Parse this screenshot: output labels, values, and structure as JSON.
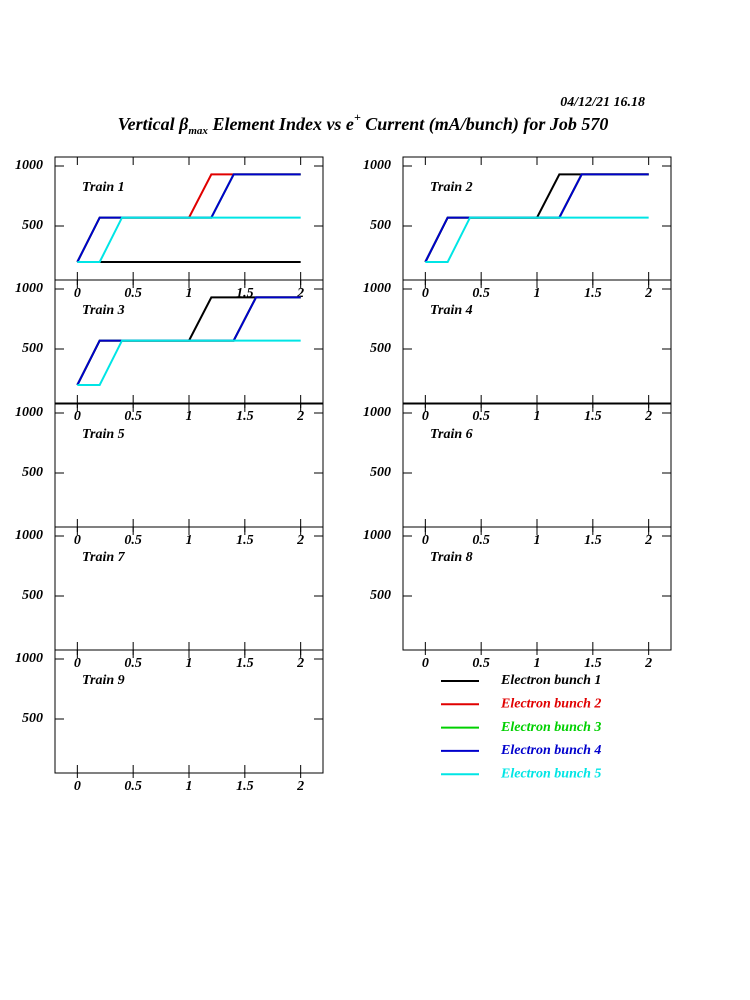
{
  "header": {
    "date": "04/12/21   16.18",
    "title_parts": [
      "Vertical β",
      "max",
      " Element Index vs e",
      "+",
      " Current (mA/bunch) for Job 570"
    ]
  },
  "chart_data": [
    {
      "type": "line",
      "title": "Train 1",
      "xlim": [
        -0.2,
        2.2
      ],
      "ylim": [
        50,
        1075
      ],
      "xticks": [
        0,
        0.5,
        1,
        1.5,
        2
      ],
      "yticks": [
        500,
        1000
      ],
      "x": [
        0,
        0.2,
        0.4,
        1,
        1.2,
        1.4,
        1.6,
        2
      ],
      "series": [
        {
          "name": "Electron bunch 1",
          "color": "#000000",
          "values": [
            200,
            200,
            200,
            200,
            200,
            200,
            200,
            200
          ]
        },
        {
          "name": "Electron bunch 2",
          "color": "#e00000",
          "values": [
            200,
            570,
            570,
            570,
            930,
            930,
            930,
            930
          ]
        },
        {
          "name": "Electron bunch 3",
          "color": "#00d000",
          "values": [
            200,
            570,
            570,
            570,
            570,
            930,
            930,
            930
          ]
        },
        {
          "name": "Electron bunch 4",
          "color": "#0000cc",
          "values": [
            200,
            570,
            570,
            570,
            570,
            930,
            930,
            930
          ]
        },
        {
          "name": "Electron bunch 5",
          "color": "#00e5e5",
          "values": [
            200,
            200,
            570,
            570,
            570,
            570,
            570,
            570
          ]
        }
      ]
    },
    {
      "type": "line",
      "title": "Train 2",
      "xlim": [
        -0.2,
        2.2
      ],
      "ylim": [
        50,
        1075
      ],
      "xticks": [
        0,
        0.5,
        1,
        1.5,
        2
      ],
      "yticks": [
        500,
        1000
      ],
      "x": [
        0,
        0.2,
        0.4,
        1,
        1.2,
        1.4,
        1.6,
        2
      ],
      "series": [
        {
          "name": "Electron bunch 1",
          "color": "#000000",
          "values": [
            200,
            570,
            570,
            570,
            930,
            930,
            930,
            930
          ]
        },
        {
          "name": "Electron bunch 2",
          "color": "#e00000",
          "values": [
            200,
            570,
            570,
            570,
            570,
            930,
            930,
            930
          ]
        },
        {
          "name": "Electron bunch 3",
          "color": "#00d000",
          "values": [
            200,
            570,
            570,
            570,
            570,
            930,
            930,
            930
          ]
        },
        {
          "name": "Electron bunch 4",
          "color": "#0000cc",
          "values": [
            200,
            570,
            570,
            570,
            570,
            930,
            930,
            930
          ]
        },
        {
          "name": "Electron bunch 5",
          "color": "#00e5e5",
          "values": [
            200,
            200,
            570,
            570,
            570,
            570,
            570,
            570
          ]
        }
      ]
    },
    {
      "type": "line",
      "title": "Train 3",
      "xlim": [
        -0.2,
        2.2
      ],
      "ylim": [
        50,
        1075
      ],
      "xticks": [
        0,
        0.5,
        1,
        1.5,
        2
      ],
      "yticks": [
        500,
        1000
      ],
      "x": [
        0,
        0.2,
        0.4,
        1,
        1.2,
        1.4,
        1.6,
        2
      ],
      "series": [
        {
          "name": "Electron bunch 1",
          "color": "#000000",
          "values": [
            200,
            570,
            570,
            570,
            930,
            930,
            930,
            930
          ]
        },
        {
          "name": "Electron bunch 2",
          "color": "#e00000",
          "values": [
            200,
            570,
            570,
            570,
            570,
            570,
            930,
            930
          ]
        },
        {
          "name": "Electron bunch 3",
          "color": "#00d000",
          "values": [
            200,
            570,
            570,
            570,
            570,
            570,
            930,
            930
          ]
        },
        {
          "name": "Electron bunch 4",
          "color": "#0000cc",
          "values": [
            200,
            570,
            570,
            570,
            570,
            570,
            930,
            930
          ]
        },
        {
          "name": "Electron bunch 5",
          "color": "#00e5e5",
          "values": [
            200,
            200,
            570,
            570,
            570,
            570,
            570,
            570
          ]
        }
      ]
    },
    {
      "type": "line",
      "title": "Train 4",
      "xlim": [
        -0.2,
        2.2
      ],
      "ylim": [
        50,
        1075
      ],
      "xticks": [
        0,
        0.5,
        1,
        1.5,
        2
      ],
      "yticks": [
        500,
        1000
      ]
    },
    {
      "type": "line",
      "title": "Train 5",
      "xlim": [
        -0.2,
        2.2
      ],
      "ylim": [
        50,
        1075
      ],
      "xticks": [
        0,
        0.5,
        1,
        1.5,
        2
      ],
      "yticks": [
        500,
        1000
      ]
    },
    {
      "type": "line",
      "title": "Train 6",
      "xlim": [
        -0.2,
        2.2
      ],
      "ylim": [
        50,
        1075
      ],
      "xticks": [
        0,
        0.5,
        1,
        1.5,
        2
      ],
      "yticks": [
        500,
        1000
      ]
    },
    {
      "type": "line",
      "title": "Train 7",
      "xlim": [
        -0.2,
        2.2
      ],
      "ylim": [
        50,
        1075
      ],
      "xticks": [
        0,
        0.5,
        1,
        1.5,
        2
      ],
      "yticks": [
        500,
        1000
      ]
    },
    {
      "type": "line",
      "title": "Train 8",
      "xlim": [
        -0.2,
        2.2
      ],
      "ylim": [
        50,
        1075
      ],
      "xticks": [
        0,
        0.5,
        1,
        1.5,
        2
      ],
      "yticks": [
        500,
        1000
      ]
    },
    {
      "type": "line",
      "title": "Train 9",
      "xlim": [
        -0.2,
        2.2
      ],
      "ylim": [
        50,
        1075
      ],
      "xticks": [
        0,
        0.5,
        1,
        1.5,
        2
      ],
      "yticks": [
        500,
        1000
      ]
    }
  ]
}
